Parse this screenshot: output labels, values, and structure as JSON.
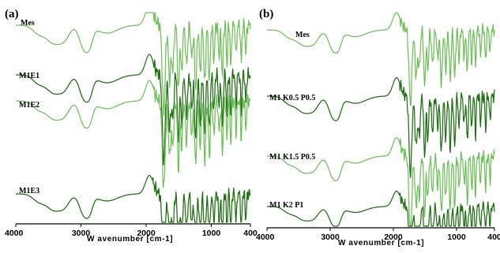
{
  "colors": {
    "trace_light": "#6fbf5a",
    "trace_dark": "#1f6e12",
    "axis": "#000000"
  },
  "chart_data": [
    {
      "type": "line",
      "panel_label": "(a)",
      "xlabel": "W avenumber [cm-1]",
      "ylabel": "",
      "xlim": [
        4000,
        400
      ],
      "x_reversed": true,
      "xticks": [
        4000,
        3000,
        2000,
        1000,
        400
      ],
      "xtick_labels": [
        "4000",
        "3000",
        "2000",
        "1000",
        "400"
      ],
      "y_axis_shown": false,
      "grid": false,
      "legend": "inline-left",
      "series": [
        {
          "name": "Mes",
          "offset": 0.0
        },
        {
          "name": "M1E1",
          "offset": 1.0
        },
        {
          "name": "M1E2",
          "offset": 2.0
        },
        {
          "name": "M1E3",
          "offset": 3.0
        }
      ]
    },
    {
      "type": "line",
      "panel_label": "(b)",
      "xlabel": "W avenumber [cm-1]",
      "ylabel": "",
      "xlim": [
        4000,
        400
      ],
      "x_reversed": true,
      "xticks": [
        4000,
        3000,
        2000,
        1000,
        400
      ],
      "xtick_labels": [
        "4000",
        "3000",
        "2000",
        "1000",
        "400"
      ],
      "y_axis_shown": false,
      "grid": false,
      "legend": "inline-left",
      "series": [
        {
          "name": "Mes",
          "offset": 0.0
        },
        {
          "name": "M1 K0.5 P0.5",
          "offset": 1.0
        },
        {
          "name": "M1 K1.5 P0.5",
          "offset": 2.0
        },
        {
          "name": "M1 K2 P1",
          "offset": 3.0
        }
      ]
    }
  ]
}
